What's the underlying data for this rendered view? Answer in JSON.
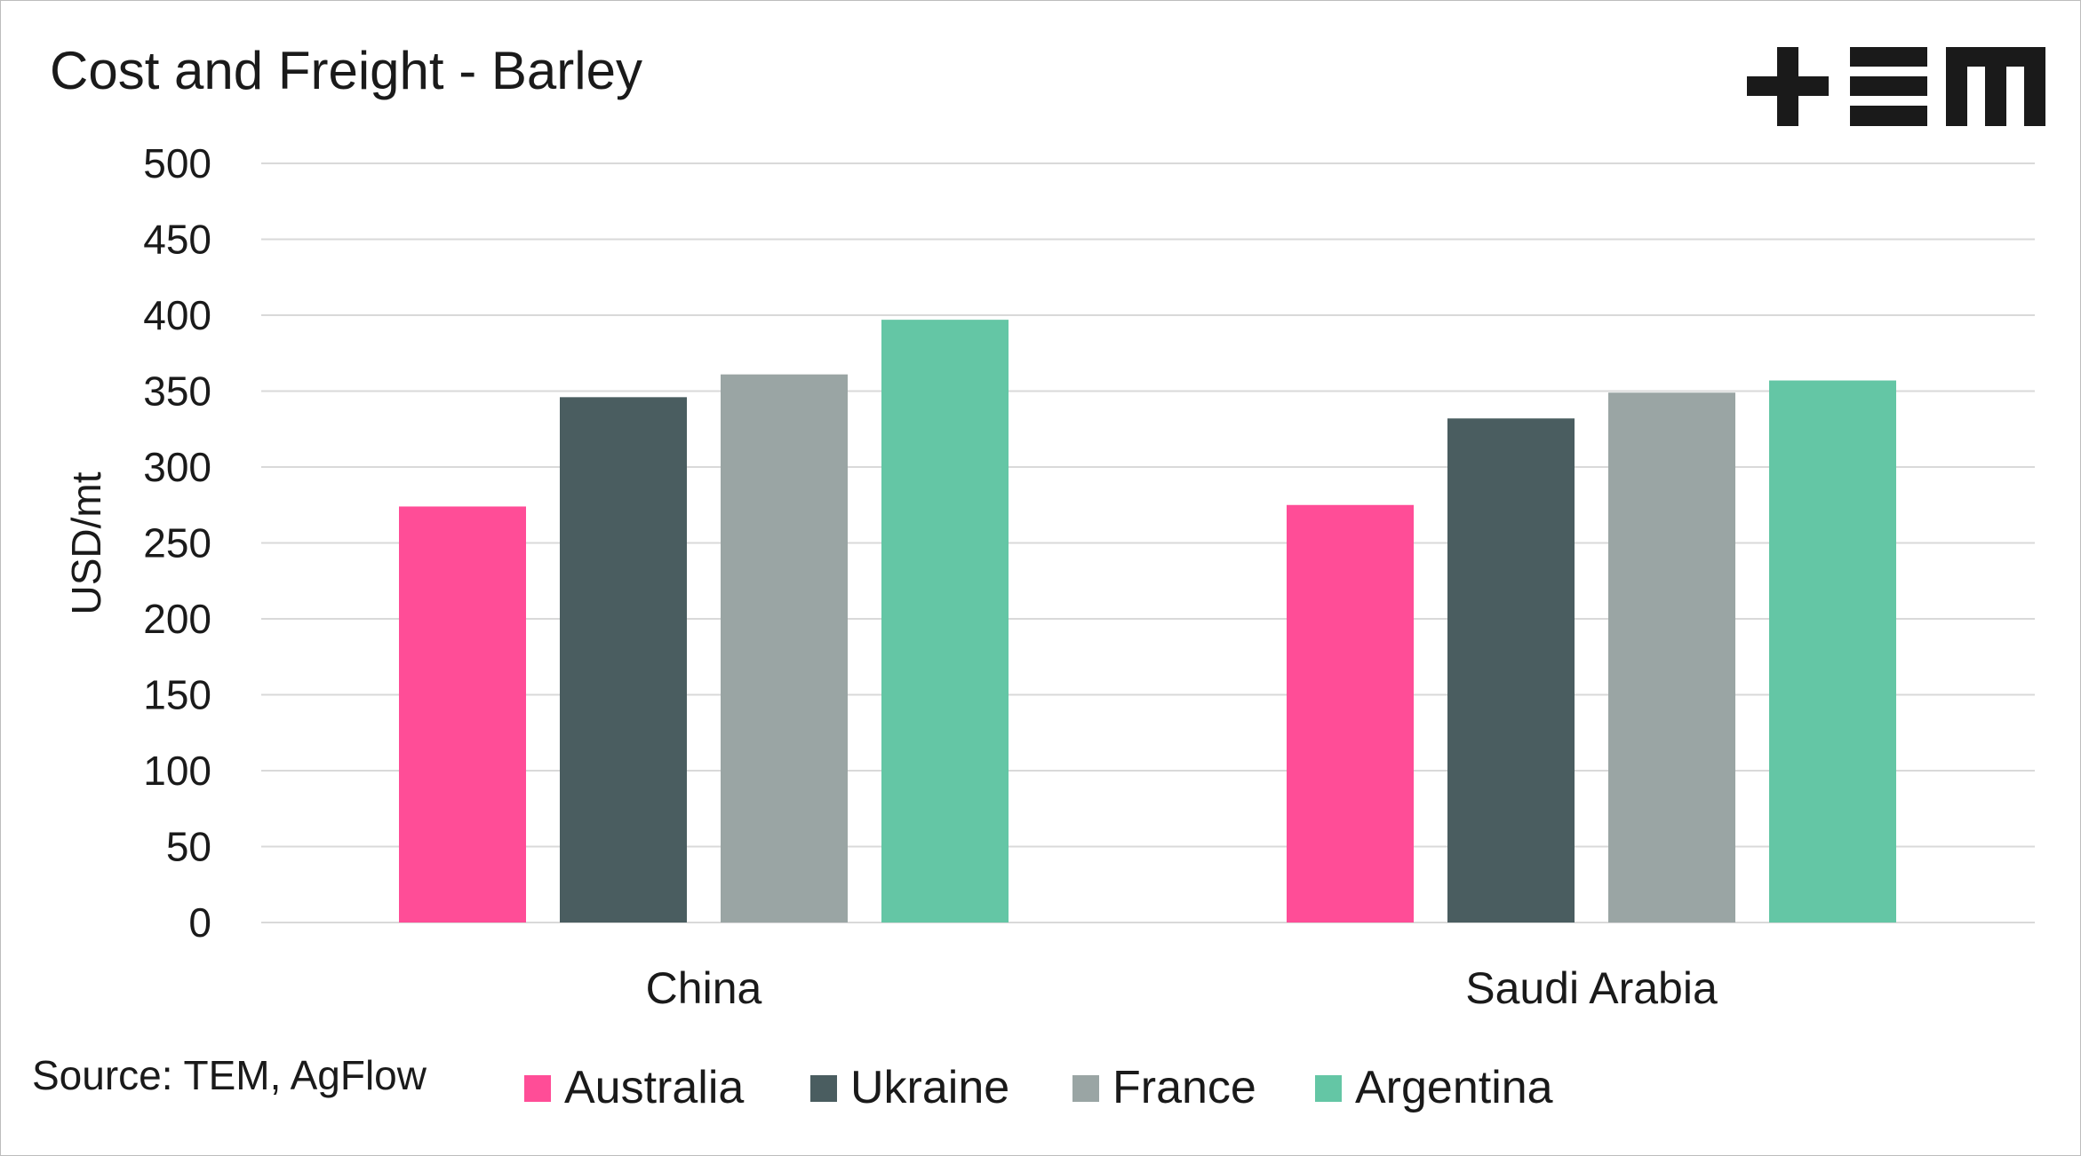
{
  "page": {
    "source": "Source: TEM, AgFlow"
  },
  "logo": {
    "text": "+EM",
    "color": "#1a1a1a"
  },
  "chart_data": {
    "type": "bar",
    "title": "Cost and Freight - Barley",
    "xlabel": "",
    "ylabel": "USD/mt",
    "ylim": [
      0,
      500
    ],
    "yticks": [
      0,
      50,
      100,
      150,
      200,
      250,
      300,
      350,
      400,
      450,
      500
    ],
    "categories": [
      "China",
      "Saudi Arabia"
    ],
    "series": [
      {
        "name": "Australia",
        "color": "#ff4d97",
        "values": [
          274,
          275
        ]
      },
      {
        "name": "Ukraine",
        "color": "#4a5d60",
        "values": [
          346,
          332
        ]
      },
      {
        "name": "France",
        "color": "#9aa5a4",
        "values": [
          361,
          349
        ]
      },
      {
        "name": "Argentina",
        "color": "#64c6a5",
        "values": [
          397,
          357
        ]
      }
    ],
    "grid": true,
    "legend": "bottom"
  }
}
